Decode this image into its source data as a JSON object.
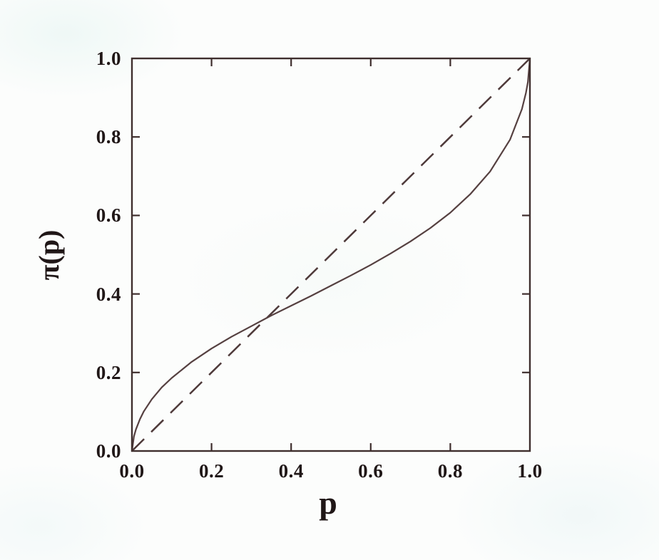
{
  "figure": {
    "background": "#fcfdfc",
    "frame_color": "#3f2f2e",
    "curve_color": "#554040",
    "identity_color": "#4e3a3a",
    "text_color": "#201717"
  },
  "chart_data": {
    "type": "line",
    "title": "",
    "xlabel": "p",
    "ylabel": "π(p)",
    "xlim": [
      0,
      1
    ],
    "ylim": [
      0,
      1
    ],
    "xticks": [
      0.0,
      0.2,
      0.4,
      0.6,
      0.8,
      1.0
    ],
    "yticks": [
      0.0,
      0.2,
      0.4,
      0.6,
      0.8,
      1.0
    ],
    "xtick_labels": [
      "0.0",
      "0.2",
      "0.4",
      "0.6",
      "0.8",
      "1.0"
    ],
    "ytick_labels": [
      "0.0",
      "0.2",
      "0.4",
      "0.6",
      "0.8",
      "1.0"
    ],
    "grid": false,
    "legend": false,
    "frame": "box-with-inward-ticks",
    "series": [
      {
        "name": "probability-weighting-curve",
        "style": "solid",
        "description": "inverse-S probability weighting function, crosses diagonal near p=0.34",
        "x": [
          0,
          0.005,
          0.01,
          0.02,
          0.03,
          0.05,
          0.075,
          0.1,
          0.15,
          0.2,
          0.25,
          0.3,
          0.35,
          0.4,
          0.45,
          0.5,
          0.55,
          0.6,
          0.65,
          0.7,
          0.75,
          0.8,
          0.85,
          0.9,
          0.95,
          0.98,
          0.99,
          0.995,
          1.0
        ],
        "y": [
          0,
          0.037,
          0.055,
          0.081,
          0.101,
          0.132,
          0.162,
          0.186,
          0.227,
          0.261,
          0.291,
          0.318,
          0.345,
          0.37,
          0.395,
          0.421,
          0.447,
          0.474,
          0.503,
          0.534,
          0.568,
          0.607,
          0.654,
          0.712,
          0.793,
          0.871,
          0.912,
          0.94,
          1.0
        ]
      },
      {
        "name": "identity-diagonal",
        "style": "dashed",
        "x": [
          0,
          1
        ],
        "y": [
          0,
          1
        ]
      }
    ]
  }
}
